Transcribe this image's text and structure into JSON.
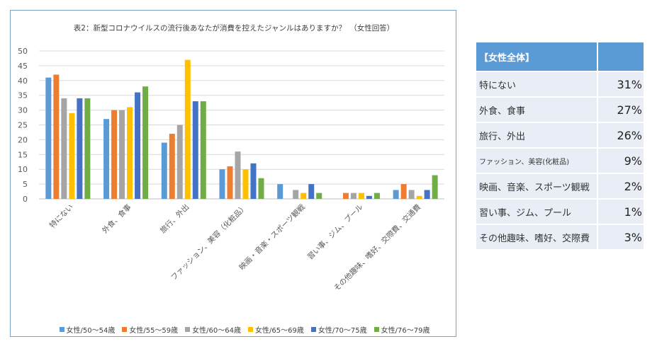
{
  "chart_data": {
    "type": "bar",
    "title": "表2：新型コロナウイルスの流行後あなたが消費を控えたジャンルはありますか？　（女性回答）",
    "categories": [
      "特にない",
      "外食、食事",
      "旅行、外出",
      "ファッション、美容（化粧品）",
      "映画・音楽・スポーツ観戦",
      "習い事、ジム、プール",
      "その他趣味、嗜好、交際費、交通費"
    ],
    "series": [
      {
        "name": "女性/50～54歳",
        "color": "#5b9bd5",
        "values": [
          41,
          27,
          19,
          10,
          5,
          0,
          3
        ]
      },
      {
        "name": "女性/55～59歳",
        "color": "#ed7d31",
        "values": [
          42,
          30,
          22,
          11,
          0,
          2,
          5
        ]
      },
      {
        "name": "女性/60～64歳",
        "color": "#a5a5a5",
        "values": [
          34,
          30,
          25,
          16,
          3,
          2,
          3
        ]
      },
      {
        "name": "女性/65～69歳",
        "color": "#ffc000",
        "values": [
          29,
          31,
          47,
          10,
          2,
          2,
          1
        ]
      },
      {
        "name": "女性/70～75歳",
        "color": "#4472c4",
        "values": [
          34,
          36,
          33,
          12,
          5,
          1,
          3
        ]
      },
      {
        "name": "女性/76～79歳",
        "color": "#70ad47",
        "values": [
          34,
          38,
          33,
          7,
          2,
          2,
          8
        ]
      }
    ],
    "ylim": [
      0,
      50
    ],
    "yticks": [
      0,
      5,
      10,
      15,
      20,
      25,
      30,
      35,
      40,
      45,
      50
    ],
    "grid": true,
    "legend_position": "bottom"
  },
  "summary_table": {
    "header": "【女性全体】",
    "rows": [
      {
        "label": "特にない",
        "value": "31%"
      },
      {
        "label": "外食、食事",
        "value": "27%"
      },
      {
        "label": "旅行、外出",
        "value": "26%"
      },
      {
        "label": "ファッション、美容(化粧品)",
        "value": "9%"
      },
      {
        "label": "映画、音楽、スポーツ観戦",
        "value": "2%"
      },
      {
        "label": "習い事、ジム、プール",
        "value": "1%"
      },
      {
        "label": "その他趣味、嗜好、交際費",
        "value": "3%"
      }
    ]
  }
}
